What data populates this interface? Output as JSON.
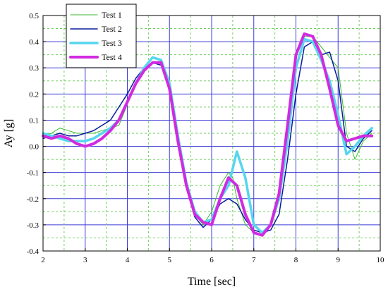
{
  "chart_data": {
    "type": "line",
    "xlabel": "Time [sec]",
    "ylabel": "Ay [g]",
    "xlim": [
      2,
      10
    ],
    "ylim": [
      -0.4,
      0.5
    ],
    "xticks": [
      "2",
      "3",
      "4",
      "5",
      "6",
      "7",
      "8",
      "9",
      "10"
    ],
    "yticks": [
      "-0.4",
      "-0.3",
      "-0.2",
      "-0.1",
      "0.0",
      "0.1",
      "0.2",
      "0.3",
      "0.4",
      "0.5"
    ],
    "grid": true,
    "legend_position": "top-left",
    "series": [
      {
        "name": "Test 1",
        "color": "#3cb832",
        "points": [
          [
            2.0,
            0.04
          ],
          [
            2.2,
            0.05
          ],
          [
            2.4,
            0.07
          ],
          [
            2.6,
            0.06
          ],
          [
            2.8,
            0.05
          ],
          [
            3.0,
            0.05
          ],
          [
            3.2,
            0.05
          ],
          [
            3.4,
            0.06
          ],
          [
            3.6,
            0.07
          ],
          [
            3.8,
            0.08
          ],
          [
            4.0,
            0.16
          ],
          [
            4.2,
            0.24
          ],
          [
            4.4,
            0.29
          ],
          [
            4.6,
            0.32
          ],
          [
            4.8,
            0.32
          ],
          [
            5.0,
            0.25
          ],
          [
            5.2,
            0.05
          ],
          [
            5.4,
            -0.13
          ],
          [
            5.6,
            -0.26
          ],
          [
            5.8,
            -0.3
          ],
          [
            6.0,
            -0.25
          ],
          [
            6.2,
            -0.15
          ],
          [
            6.4,
            -0.1
          ],
          [
            6.5,
            -0.12
          ],
          [
            6.6,
            -0.2
          ],
          [
            6.8,
            -0.3
          ],
          [
            7.0,
            -0.33
          ],
          [
            7.2,
            -0.34
          ],
          [
            7.4,
            -0.3
          ],
          [
            7.6,
            -0.18
          ],
          [
            7.8,
            0.05
          ],
          [
            8.0,
            0.3
          ],
          [
            8.2,
            0.42
          ],
          [
            8.4,
            0.42
          ],
          [
            8.6,
            0.38
          ],
          [
            8.8,
            0.34
          ],
          [
            9.0,
            0.3
          ],
          [
            9.2,
            0.05
          ],
          [
            9.4,
            -0.05
          ],
          [
            9.6,
            0.02
          ],
          [
            9.8,
            0.05
          ]
        ]
      },
      {
        "name": "Test 2",
        "color": "#0a1a9c",
        "points": [
          [
            2.0,
            0.03
          ],
          [
            2.2,
            0.04
          ],
          [
            2.4,
            0.05
          ],
          [
            2.6,
            0.04
          ],
          [
            2.8,
            0.04
          ],
          [
            3.0,
            0.05
          ],
          [
            3.2,
            0.06
          ],
          [
            3.4,
            0.08
          ],
          [
            3.6,
            0.1
          ],
          [
            3.8,
            0.15
          ],
          [
            4.0,
            0.2
          ],
          [
            4.2,
            0.26
          ],
          [
            4.4,
            0.3
          ],
          [
            4.6,
            0.32
          ],
          [
            4.8,
            0.31
          ],
          [
            5.0,
            0.22
          ],
          [
            5.2,
            0.02
          ],
          [
            5.4,
            -0.16
          ],
          [
            5.6,
            -0.27
          ],
          [
            5.8,
            -0.31
          ],
          [
            6.0,
            -0.28
          ],
          [
            6.2,
            -0.22
          ],
          [
            6.4,
            -0.2
          ],
          [
            6.6,
            -0.22
          ],
          [
            6.8,
            -0.28
          ],
          [
            7.0,
            -0.32
          ],
          [
            7.2,
            -0.33
          ],
          [
            7.4,
            -0.32
          ],
          [
            7.6,
            -0.26
          ],
          [
            7.8,
            -0.05
          ],
          [
            8.0,
            0.2
          ],
          [
            8.2,
            0.38
          ],
          [
            8.4,
            0.4
          ],
          [
            8.6,
            0.35
          ],
          [
            8.8,
            0.36
          ],
          [
            9.0,
            0.25
          ],
          [
            9.2,
            0.0
          ],
          [
            9.4,
            -0.02
          ],
          [
            9.6,
            0.03
          ],
          [
            9.8,
            0.06
          ]
        ]
      },
      {
        "name": "Test 3",
        "color": "#55d6ee",
        "points": [
          [
            2.0,
            0.05
          ],
          [
            2.2,
            0.04
          ],
          [
            2.4,
            0.03
          ],
          [
            2.6,
            0.02
          ],
          [
            2.8,
            0.02
          ],
          [
            3.0,
            0.02
          ],
          [
            3.2,
            0.03
          ],
          [
            3.4,
            0.05
          ],
          [
            3.6,
            0.07
          ],
          [
            3.8,
            0.1
          ],
          [
            4.0,
            0.17
          ],
          [
            4.2,
            0.24
          ],
          [
            4.4,
            0.3
          ],
          [
            4.6,
            0.34
          ],
          [
            4.8,
            0.33
          ],
          [
            5.0,
            0.24
          ],
          [
            5.2,
            0.04
          ],
          [
            5.4,
            -0.14
          ],
          [
            5.6,
            -0.25
          ],
          [
            5.8,
            -0.29
          ],
          [
            6.0,
            -0.28
          ],
          [
            6.2,
            -0.2
          ],
          [
            6.4,
            -0.15
          ],
          [
            6.6,
            -0.02
          ],
          [
            6.8,
            -0.12
          ],
          [
            7.0,
            -0.3
          ],
          [
            7.2,
            -0.33
          ],
          [
            7.4,
            -0.3
          ],
          [
            7.6,
            -0.2
          ],
          [
            7.8,
            0.02
          ],
          [
            8.0,
            0.3
          ],
          [
            8.2,
            0.41
          ],
          [
            8.4,
            0.4
          ],
          [
            8.6,
            0.33
          ],
          [
            8.8,
            0.25
          ],
          [
            9.0,
            0.12
          ],
          [
            9.2,
            -0.03
          ],
          [
            9.4,
            0.0
          ],
          [
            9.6,
            0.04
          ],
          [
            9.8,
            0.07
          ]
        ]
      },
      {
        "name": "Test 4",
        "color": "#d12ae0",
        "points": [
          [
            2.0,
            0.04
          ],
          [
            2.2,
            0.03
          ],
          [
            2.4,
            0.04
          ],
          [
            2.6,
            0.03
          ],
          [
            2.8,
            0.01
          ],
          [
            3.0,
            0.0
          ],
          [
            3.2,
            0.01
          ],
          [
            3.4,
            0.03
          ],
          [
            3.6,
            0.06
          ],
          [
            3.8,
            0.1
          ],
          [
            4.0,
            0.17
          ],
          [
            4.2,
            0.24
          ],
          [
            4.4,
            0.29
          ],
          [
            4.6,
            0.32
          ],
          [
            4.8,
            0.32
          ],
          [
            5.0,
            0.22
          ],
          [
            5.2,
            0.02
          ],
          [
            5.4,
            -0.15
          ],
          [
            5.6,
            -0.26
          ],
          [
            5.8,
            -0.29
          ],
          [
            6.0,
            -0.3
          ],
          [
            6.2,
            -0.2
          ],
          [
            6.4,
            -0.12
          ],
          [
            6.6,
            -0.15
          ],
          [
            6.8,
            -0.26
          ],
          [
            7.0,
            -0.33
          ],
          [
            7.2,
            -0.34
          ],
          [
            7.4,
            -0.3
          ],
          [
            7.6,
            -0.18
          ],
          [
            7.8,
            0.08
          ],
          [
            8.0,
            0.35
          ],
          [
            8.2,
            0.43
          ],
          [
            8.4,
            0.42
          ],
          [
            8.6,
            0.35
          ],
          [
            8.8,
            0.22
          ],
          [
            9.0,
            0.08
          ],
          [
            9.2,
            0.02
          ],
          [
            9.4,
            0.03
          ],
          [
            9.6,
            0.04
          ],
          [
            9.8,
            0.04
          ]
        ]
      }
    ]
  }
}
